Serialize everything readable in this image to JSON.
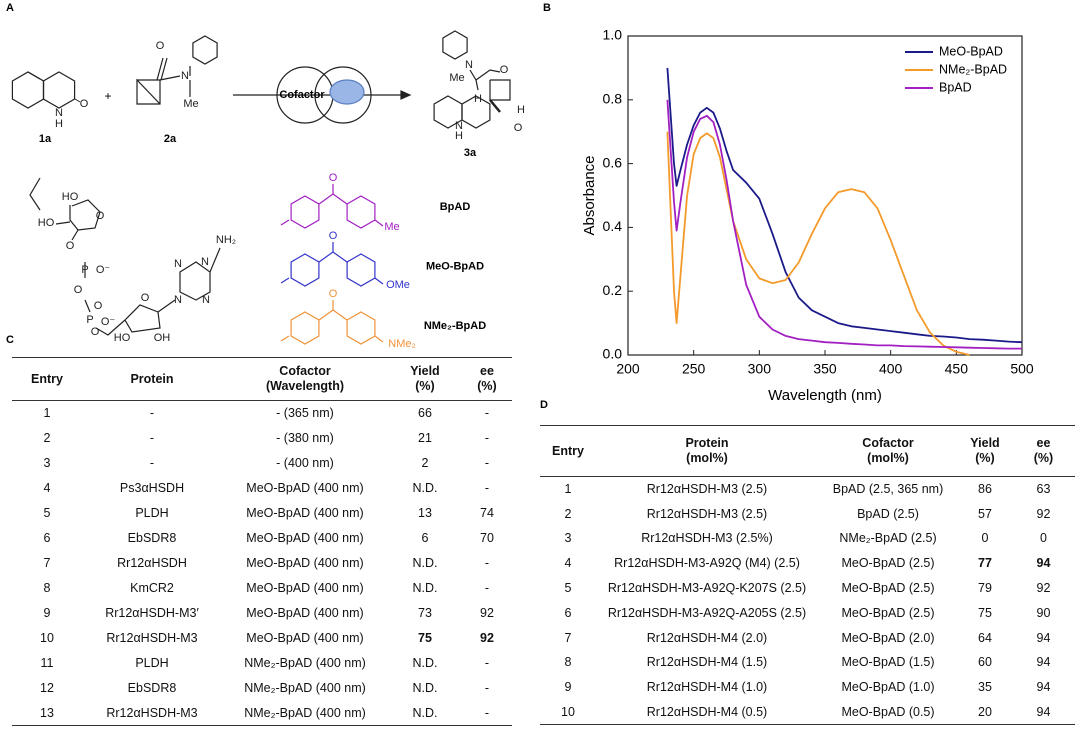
{
  "panel_labels": [
    "A",
    "B",
    "C",
    "D"
  ],
  "scheme": {
    "compounds": [
      "1a",
      "2a",
      "3a"
    ],
    "plus": "+",
    "enzyme_label": "Cofactor",
    "cofactors": [
      "BpAD",
      "MeO-BpAD",
      "NMe₂-BpAD"
    ],
    "atom_labels": [
      "O",
      "N",
      "H",
      "O",
      "N",
      "Me",
      "N",
      "Me",
      "O",
      "H",
      "H",
      "N",
      "H",
      "O",
      "HO",
      "HO",
      "O",
      "O",
      "P",
      "O⁻",
      "O",
      "O",
      "P",
      "O⁻",
      "O",
      "O",
      "N",
      "N",
      "N",
      "N",
      "NH₂",
      "HO",
      "OH",
      "O",
      "Me",
      "O",
      "OMe",
      "O",
      "NMe₂"
    ]
  },
  "chart_data": {
    "type": "line",
    "xlabel": "Wavelength (nm)",
    "ylabel": "Absorbance",
    "x": [
      230,
      235,
      237,
      240,
      245,
      250,
      255,
      260,
      265,
      270,
      275,
      280,
      290,
      300,
      310,
      320,
      330,
      340,
      350,
      360,
      370,
      380,
      390,
      400,
      410,
      420,
      430,
      440,
      450,
      460,
      470,
      480,
      490,
      500
    ],
    "series": [
      {
        "name": "MeO-BpAD",
        "color": "#1c1a8a",
        "values": [
          0.9,
          0.6,
          0.53,
          0.58,
          0.66,
          0.72,
          0.76,
          0.775,
          0.76,
          0.71,
          0.64,
          0.58,
          0.54,
          0.49,
          0.38,
          0.26,
          0.18,
          0.14,
          0.12,
          0.1,
          0.09,
          0.085,
          0.08,
          0.075,
          0.07,
          0.065,
          0.06,
          0.058,
          0.055,
          0.05,
          0.048,
          0.045,
          0.042,
          0.04
        ]
      },
      {
        "name": "NMe₂-BpAD",
        "color": "#f39a2b",
        "values": [
          0.7,
          0.2,
          0.1,
          0.25,
          0.5,
          0.63,
          0.68,
          0.695,
          0.68,
          0.62,
          0.52,
          0.42,
          0.3,
          0.24,
          0.225,
          0.235,
          0.29,
          0.38,
          0.46,
          0.51,
          0.52,
          0.51,
          0.46,
          0.36,
          0.25,
          0.14,
          0.07,
          0.03,
          0.01,
          0.0,
          null,
          null,
          null,
          null
        ]
      },
      {
        "name": "BpAD",
        "color": "#a21fc2",
        "values": [
          0.8,
          0.48,
          0.39,
          0.48,
          0.62,
          0.7,
          0.74,
          0.75,
          0.73,
          0.66,
          0.55,
          0.42,
          0.22,
          0.12,
          0.08,
          0.06,
          0.05,
          0.045,
          0.04,
          0.038,
          0.035,
          0.033,
          0.03,
          0.03,
          0.028,
          0.027,
          0.026,
          0.025,
          0.024,
          0.023,
          0.022,
          0.021,
          0.02,
          0.02
        ]
      }
    ],
    "xlim": [
      200,
      500
    ],
    "xticks": [
      200,
      250,
      300,
      350,
      400,
      450,
      500
    ],
    "ylim": [
      0,
      1
    ],
    "yticks": [
      {
        "value": 0,
        "label": "0.0"
      },
      {
        "value": 0.2,
        "label": "0.2"
      },
      {
        "value": 0.4,
        "label": "0.4"
      },
      {
        "value": 0.6,
        "label": "0.6"
      },
      {
        "value": 0.8,
        "label": "0.8"
      },
      {
        "value": 1,
        "label": "1.0"
      }
    ],
    "legend": "upper right"
  },
  "table_c": {
    "header": [
      [
        "Entry"
      ],
      [
        "Protein"
      ],
      [
        "Cofactor",
        "(Wavelength)"
      ],
      [
        "Yield",
        "(%)"
      ],
      [
        "ee",
        "(%)"
      ]
    ],
    "rows": [
      [
        1,
        "-",
        "- (365 nm)",
        66,
        "-"
      ],
      [
        2,
        "-",
        "- (380 nm)",
        21,
        "-"
      ],
      [
        3,
        "-",
        "- (400 nm)",
        2,
        "-"
      ],
      [
        4,
        "Ps3αHSDH",
        "MeO-BpAD (400 nm)",
        "N.D.",
        "-"
      ],
      [
        5,
        "PLDH",
        "MeO-BpAD (400 nm)",
        13,
        74
      ],
      [
        6,
        "EbSDR8",
        "MeO-BpAD (400 nm)",
        6,
        70
      ],
      [
        7,
        "Rr12αHSDH",
        "MeO-BpAD (400 nm)",
        "N.D.",
        "-"
      ],
      [
        8,
        "KmCR2",
        "MeO-BpAD (400 nm)",
        "N.D.",
        "-"
      ],
      [
        9,
        "Rr12αHSDH-M3′",
        "MeO-BpAD (400 nm)",
        73,
        92
      ],
      [
        10,
        "Rr12αHSDH-M3",
        "MeO-BpAD (400 nm)",
        75,
        92
      ],
      [
        11,
        "PLDH",
        "NMe₂-BpAD (400 nm)",
        "N.D.",
        "-"
      ],
      [
        12,
        "EbSDR8",
        "NMe₂-BpAD (400 nm)",
        "N.D.",
        "-"
      ],
      [
        13,
        "Rr12αHSDH-M3",
        "NMe₂-BpAD (400 nm)",
        "N.D.",
        "-"
      ]
    ],
    "bold_cells": [
      [
        9,
        3
      ],
      [
        9,
        4
      ]
    ]
  },
  "table_d": {
    "header": [
      [
        "Entry"
      ],
      [
        "Protein",
        "(mol%)"
      ],
      [
        "Cofactor",
        "(mol%)"
      ],
      [
        "Yield",
        "(%)"
      ],
      [
        "ee",
        "(%)"
      ]
    ],
    "rows": [
      [
        1,
        "Rr12αHSDH-M3 (2.5)",
        "BpAD (2.5, 365 nm)",
        86,
        63
      ],
      [
        2,
        "Rr12αHSDH-M3 (2.5)",
        "BpAD (2.5)",
        57,
        92
      ],
      [
        3,
        "Rr12αHSDH-M3 (2.5%)",
        "NMe₂-BpAD (2.5)",
        0,
        0
      ],
      [
        4,
        "Rr12αHSDH-M3-A92Q (M4) (2.5)",
        "MeO-BpAD (2.5)",
        77,
        94
      ],
      [
        5,
        "Rr12αHSDH-M3-A92Q-K207S (2.5)",
        "MeO-BpAD (2.5)",
        79,
        92
      ],
      [
        6,
        "Rr12αHSDH-M3-A92Q-A205S (2.5)",
        "MeO-BpAD (2.5)",
        75,
        90
      ],
      [
        7,
        "Rr12αHSDH-M4 (2.0)",
        "MeO-BpAD (2.0)",
        64,
        94
      ],
      [
        8,
        "Rr12αHSDH-M4 (1.5)",
        "MeO-BpAD (1.5)",
        60,
        94
      ],
      [
        9,
        "Rr12αHSDH-M4 (1.0)",
        "MeO-BpAD (1.0)",
        35,
        94
      ],
      [
        10,
        "Rr12αHSDH-M4 (0.5)",
        "MeO-BpAD (0.5)",
        20,
        94
      ]
    ],
    "bold_cells": [
      [
        3,
        3
      ],
      [
        3,
        4
      ]
    ]
  }
}
